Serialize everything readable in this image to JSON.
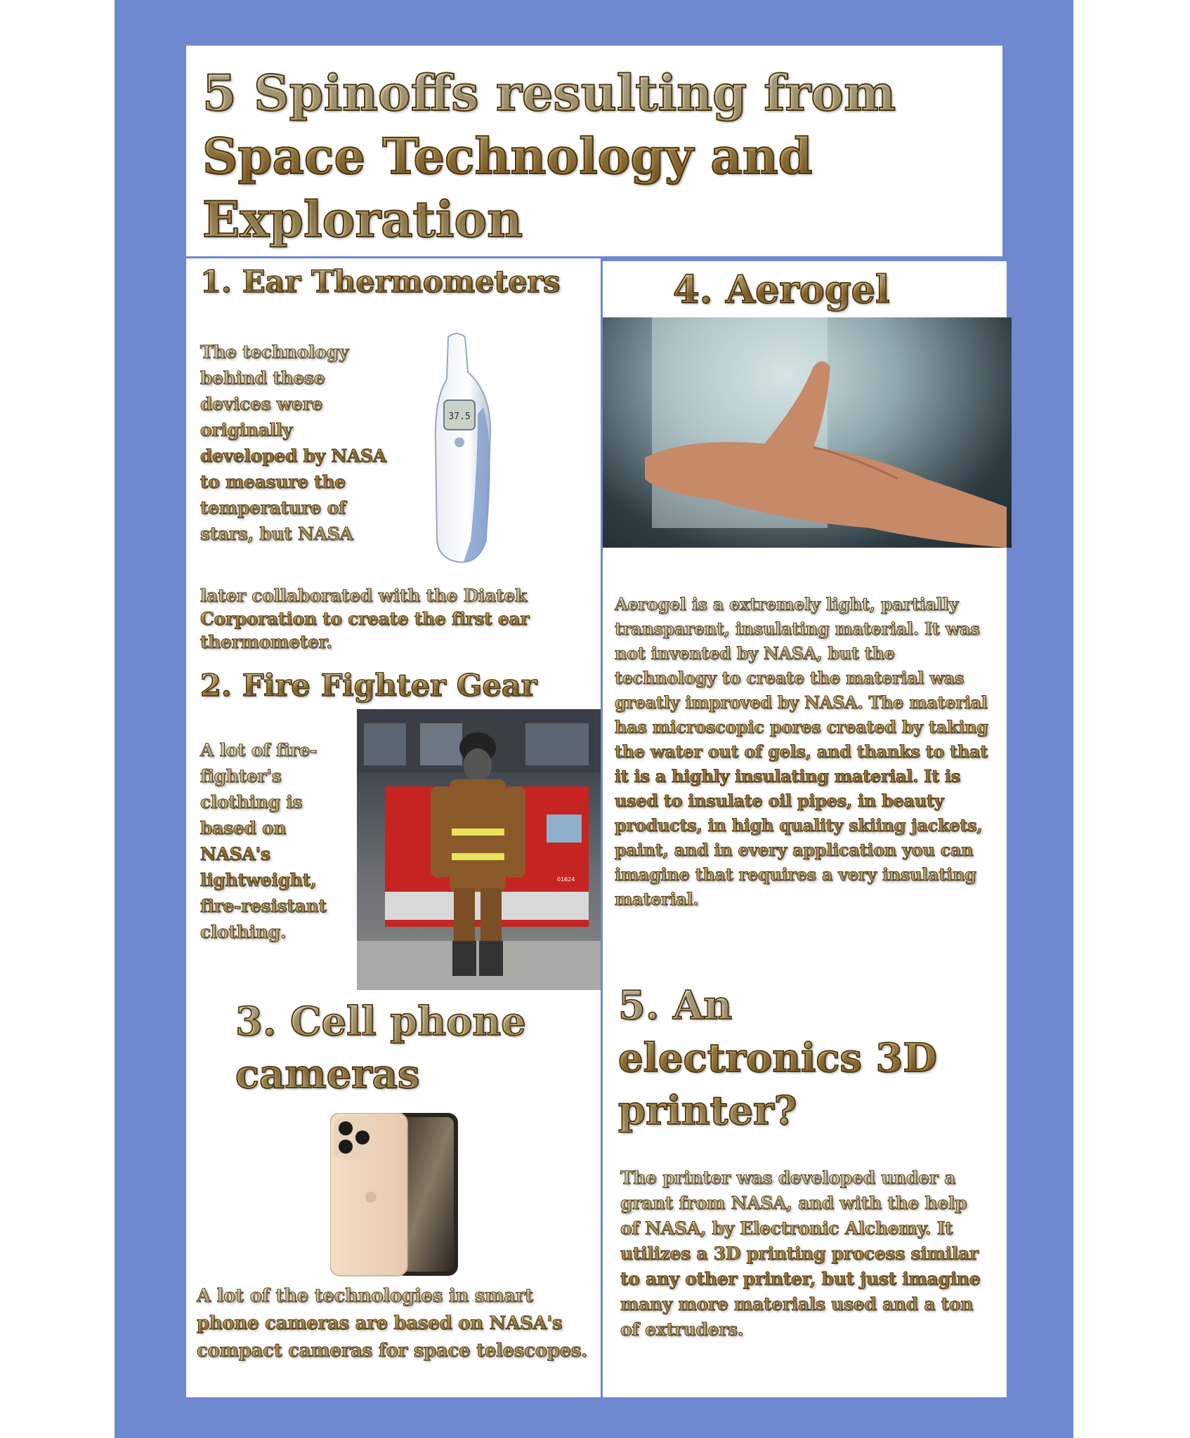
{
  "title": "5 Spinoffs resulting from Space Technology and Exploration",
  "sections": {
    "ear": {
      "heading": "1. Ear Thermometers",
      "text_top": "The technology behind these devices were originally developed by NASA to measure the temperature of stars, but NASA",
      "text_bottom": "later collaborated with the Diatek Corporation to create the first ear thermometer.",
      "display_reading": "37.5"
    },
    "fire": {
      "heading": "2. Fire Fighter Gear",
      "text": "A lot of fire-fighter's clothing is based on NASA's lightweight, fire-resistant clothing.",
      "truck_number": "01624"
    },
    "camera": {
      "heading": "3. Cell phone cameras",
      "text": "A lot of the technologies in smart phone cameras are based on NASA's compact cameras for space telescopes."
    },
    "aerogel": {
      "heading": "4. Aerogel",
      "text": "Aerogel is a extremely light, partially transparent, insulating material. It was not invented by NASA, but the technology to create the material was greatly improved by NASA. The material has microscopic pores created by taking the water out of gels, and thanks to that it is a highly insulating material. It is used to insulate oil pipes, in beauty products, in high quality skiing jackets, paint, and in every application you can imagine that requires a very insulating material."
    },
    "printer": {
      "heading": "5. An electronics 3D printer?",
      "text": "The printer was developed under a grant from NASA, and with the help of NASA, by Electronic Alchemy. It utilizes a 3D printing process similar to any other printer, but just imagine  many more materials used and a ton of extruders."
    }
  },
  "colors": {
    "background": "#6e89d0",
    "panel": "#ffffff",
    "gold": "#d9b56a",
    "gold_outline": "#4a3616"
  }
}
